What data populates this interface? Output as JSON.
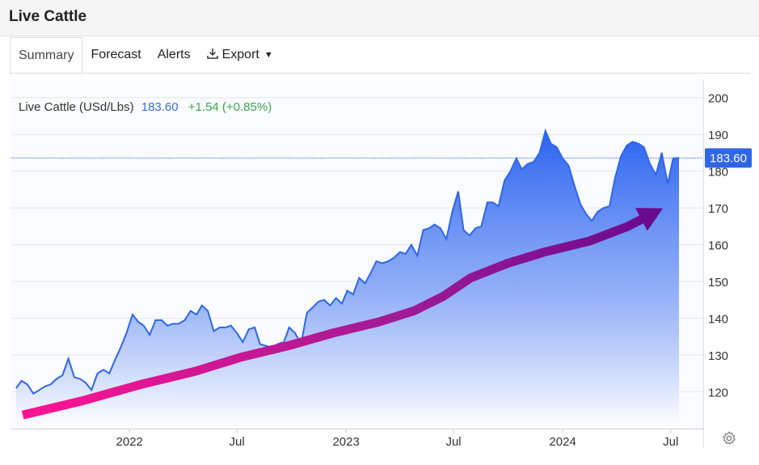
{
  "header": {
    "title": "Live Cattle"
  },
  "tabs": [
    {
      "label": "Summary",
      "active": true
    },
    {
      "label": "Forecast",
      "active": false
    },
    {
      "label": "Alerts",
      "active": false
    },
    {
      "label": "Export",
      "active": false
    }
  ],
  "export_icon": "download-icon",
  "legend": {
    "name": "Live Cattle (USd/Lbs)",
    "last": "183.60",
    "change": "+1.54 (+0.85%)"
  },
  "colors": {
    "line": "#2f66e8",
    "price_text": "#3a6fd8",
    "change_text": "#3aa64b",
    "badge_bg": "#2f66e8",
    "arrow_start": "#ff1493",
    "arrow_mid": "#a01a96",
    "arrow_end": "#6b0a8c"
  },
  "chart_data": {
    "type": "area",
    "series_name": "Live Cattle (USd/Lbs)",
    "ylim": [
      110,
      205
    ],
    "yticks": [
      120,
      130,
      140,
      150,
      160,
      170,
      180,
      190,
      200
    ],
    "ytick_labels": [
      "120",
      "130",
      "140",
      "150",
      "160",
      "170",
      "180",
      "190",
      "200"
    ],
    "xlim": [
      "2021-06-24",
      "2024-07-15"
    ],
    "xticks": [
      {
        "date": "2022-01-01",
        "label": "2022"
      },
      {
        "date": "2022-07-01",
        "label": "Jul"
      },
      {
        "date": "2023-01-01",
        "label": "2023"
      },
      {
        "date": "2023-07-01",
        "label": "Jul"
      },
      {
        "date": "2024-01-01",
        "label": "2024"
      },
      {
        "date": "2024-07-01",
        "label": "Jul"
      }
    ],
    "last_value": 183.6,
    "last_value_label": "183.60",
    "points": [
      [
        "2021-06-24",
        121
      ],
      [
        "2021-07-03",
        123
      ],
      [
        "2021-07-13",
        122
      ],
      [
        "2021-07-23",
        119.5
      ],
      [
        "2021-08-02",
        120.5
      ],
      [
        "2021-08-12",
        121.5
      ],
      [
        "2021-08-21",
        122
      ],
      [
        "2021-08-31",
        123.5
      ],
      [
        "2021-09-10",
        124.5
      ],
      [
        "2021-09-20",
        129
      ],
      [
        "2021-09-30",
        124
      ],
      [
        "2021-10-10",
        123.5
      ],
      [
        "2021-10-19",
        122.5
      ],
      [
        "2021-10-29",
        120.5
      ],
      [
        "2021-11-08",
        125
      ],
      [
        "2021-11-18",
        126
      ],
      [
        "2021-11-28",
        125
      ],
      [
        "2021-12-07",
        128.5
      ],
      [
        "2021-12-17",
        132
      ],
      [
        "2021-12-27",
        136
      ],
      [
        "2022-01-06",
        141
      ],
      [
        "2022-01-16",
        139
      ],
      [
        "2022-01-25",
        138
      ],
      [
        "2022-02-04",
        135.5
      ],
      [
        "2022-02-14",
        139.5
      ],
      [
        "2022-02-24",
        139.5
      ],
      [
        "2022-03-06",
        138
      ],
      [
        "2022-03-15",
        138.5
      ],
      [
        "2022-03-25",
        138.5
      ],
      [
        "2022-04-04",
        139.5
      ],
      [
        "2022-04-14",
        142
      ],
      [
        "2022-04-24",
        141
      ],
      [
        "2022-05-03",
        143.5
      ],
      [
        "2022-05-13",
        142
      ],
      [
        "2022-05-23",
        136.5
      ],
      [
        "2022-06-02",
        137.5
      ],
      [
        "2022-06-12",
        137.5
      ],
      [
        "2022-06-21",
        138
      ],
      [
        "2022-07-01",
        136
      ],
      [
        "2022-07-11",
        133.5
      ],
      [
        "2022-07-21",
        137
      ],
      [
        "2022-07-31",
        137.5
      ],
      [
        "2022-08-09",
        133
      ],
      [
        "2022-08-19",
        132.5
      ],
      [
        "2022-08-29",
        132
      ],
      [
        "2022-09-08",
        133
      ],
      [
        "2022-09-18",
        133.5
      ],
      [
        "2022-09-27",
        137.5
      ],
      [
        "2022-10-07",
        136
      ],
      [
        "2022-10-17",
        133
      ],
      [
        "2022-10-27",
        141.5
      ],
      [
        "2022-11-06",
        143
      ],
      [
        "2022-11-15",
        144.5
      ],
      [
        "2022-11-25",
        145
      ],
      [
        "2022-12-05",
        143.5
      ],
      [
        "2022-12-15",
        145.5
      ],
      [
        "2022-12-25",
        144
      ],
      [
        "2023-01-03",
        147.5
      ],
      [
        "2023-01-13",
        146.5
      ],
      [
        "2023-01-23",
        151
      ],
      [
        "2023-02-02",
        149.5
      ],
      [
        "2023-02-12",
        152.5
      ],
      [
        "2023-02-21",
        155.5
      ],
      [
        "2023-03-03",
        155
      ],
      [
        "2023-03-13",
        155.5
      ],
      [
        "2023-03-23",
        156.5
      ],
      [
        "2023-04-02",
        158
      ],
      [
        "2023-04-11",
        157.5
      ],
      [
        "2023-04-21",
        160
      ],
      [
        "2023-05-01",
        157
      ],
      [
        "2023-05-11",
        164
      ],
      [
        "2023-05-21",
        164.5
      ],
      [
        "2023-05-30",
        165.5
      ],
      [
        "2023-06-09",
        164.5
      ],
      [
        "2023-06-19",
        161.5
      ],
      [
        "2023-06-29",
        169
      ],
      [
        "2023-07-09",
        174.5
      ],
      [
        "2023-07-18",
        164
      ],
      [
        "2023-07-28",
        162.5
      ],
      [
        "2023-08-07",
        164.5
      ],
      [
        "2023-08-17",
        165
      ],
      [
        "2023-08-27",
        171.5
      ],
      [
        "2023-09-05",
        171.5
      ],
      [
        "2023-09-15",
        170.5
      ],
      [
        "2023-09-25",
        177.5
      ],
      [
        "2023-10-05",
        180
      ],
      [
        "2023-10-15",
        183.5
      ],
      [
        "2023-10-24",
        180.5
      ],
      [
        "2023-11-03",
        182
      ],
      [
        "2023-11-13",
        182.5
      ],
      [
        "2023-11-23",
        185
      ],
      [
        "2023-12-03",
        191
      ],
      [
        "2023-12-12",
        187.5
      ],
      [
        "2023-12-22",
        186.5
      ],
      [
        "2024-01-01",
        183.5
      ],
      [
        "2024-01-11",
        181.5
      ],
      [
        "2024-01-21",
        176
      ],
      [
        "2024-01-31",
        171
      ],
      [
        "2024-02-09",
        168.5
      ],
      [
        "2024-02-19",
        166.5
      ],
      [
        "2024-02-29",
        169
      ],
      [
        "2024-03-10",
        170
      ],
      [
        "2024-03-20",
        170.5
      ],
      [
        "2024-03-29",
        178
      ],
      [
        "2024-04-08",
        184
      ],
      [
        "2024-04-18",
        187
      ],
      [
        "2024-04-28",
        188
      ],
      [
        "2024-05-08",
        187.5
      ],
      [
        "2024-05-17",
        186.5
      ],
      [
        "2024-05-27",
        182
      ],
      [
        "2024-06-06",
        179
      ],
      [
        "2024-06-16",
        185
      ],
      [
        "2024-06-26",
        176.5
      ],
      [
        "2024-07-05",
        183.5
      ],
      [
        "2024-07-15",
        183.6
      ]
    ],
    "trend_arrow": [
      [
        "2021-07-05",
        113.7
      ],
      [
        "2021-10-12",
        117.5
      ],
      [
        "2022-01-20",
        122
      ],
      [
        "2022-04-20",
        125.5
      ],
      [
        "2022-07-10",
        129.5
      ],
      [
        "2022-09-25",
        132.5
      ],
      [
        "2022-12-10",
        136
      ],
      [
        "2023-02-25",
        139
      ],
      [
        "2023-04-25",
        142
      ],
      [
        "2023-06-14",
        146
      ],
      [
        "2023-07-30",
        151
      ],
      [
        "2023-10-01",
        155
      ],
      [
        "2023-12-01",
        158
      ],
      [
        "2024-02-15",
        161
      ],
      [
        "2024-04-20",
        165
      ],
      [
        "2024-06-01",
        168.5
      ]
    ]
  }
}
